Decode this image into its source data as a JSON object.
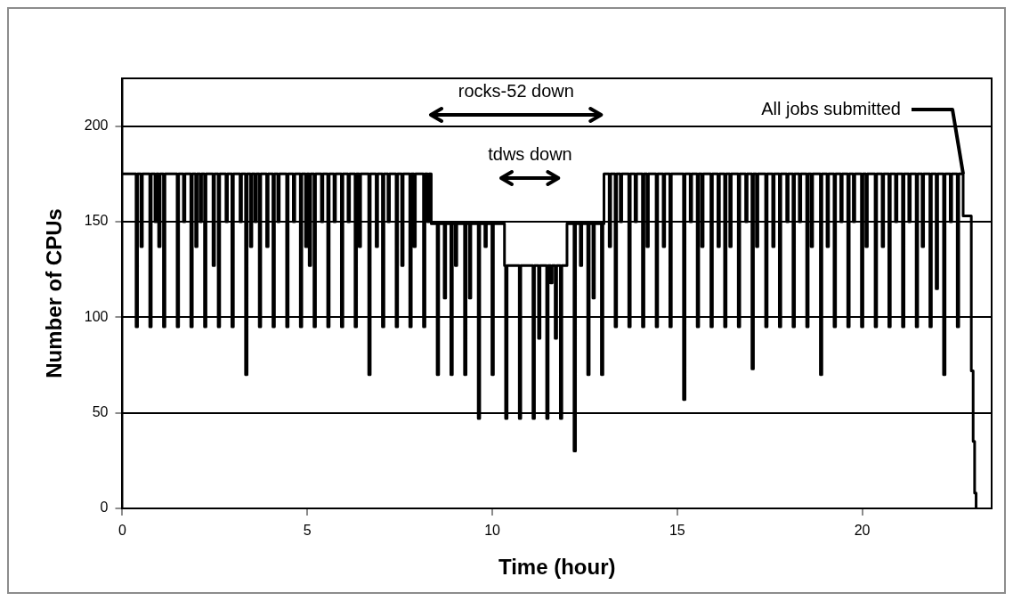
{
  "chart_data": {
    "type": "step",
    "xlabel": "Time (hour)",
    "ylabel": "Number of CPUs",
    "color": "#000000",
    "grid": "y",
    "xlim": [
      0,
      23.5
    ],
    "xticks": [
      0,
      5,
      10,
      15,
      20
    ],
    "ylim": [
      0,
      225
    ],
    "yticks": [
      0,
      50,
      100,
      150,
      200
    ],
    "x": [
      0,
      0.37,
      0.41,
      0.5,
      0.54,
      0.74,
      0.78,
      0.88,
      0.92,
      0.98,
      1.02,
      1.11,
      1.15,
      1.48,
      1.52,
      1.65,
      1.69,
      1.85,
      1.89,
      1.98,
      2.02,
      2.1,
      2.14,
      2.22,
      2.26,
      2.45,
      2.49,
      2.59,
      2.63,
      2.8,
      2.84,
      2.96,
      3.0,
      3.18,
      3.22,
      3.33,
      3.37,
      3.46,
      3.5,
      3.58,
      3.62,
      3.7,
      3.74,
      3.9,
      3.94,
      4.07,
      4.11,
      4.2,
      4.24,
      4.44,
      4.48,
      4.62,
      4.66,
      4.81,
      4.85,
      4.95,
      4.99,
      5.05,
      5.09,
      5.18,
      5.22,
      5.38,
      5.42,
      5.55,
      5.59,
      5.72,
      5.76,
      5.92,
      5.96,
      6.1,
      6.14,
      6.29,
      6.33,
      6.4,
      6.44,
      6.66,
      6.7,
      6.86,
      6.9,
      7.03,
      7.07,
      7.18,
      7.22,
      7.4,
      7.44,
      7.55,
      7.59,
      7.77,
      7.81,
      7.88,
      7.92,
      8.14,
      8.18,
      8.25,
      8.29,
      8.35,
      8.51,
      8.55,
      8.7,
      8.74,
      8.88,
      8.92,
      9.0,
      9.04,
      9.25,
      9.29,
      9.38,
      9.42,
      9.62,
      9.66,
      9.8,
      9.84,
      9.99,
      10.03,
      10.33,
      10.36,
      10.4,
      10.73,
      10.77,
      11.1,
      11.14,
      11.25,
      11.29,
      11.47,
      11.51,
      11.58,
      11.62,
      11.7,
      11.74,
      11.84,
      11.88,
      12.02,
      12.21,
      12.25,
      12.38,
      12.42,
      12.58,
      12.62,
      12.72,
      12.76,
      12.95,
      12.99,
      13.02,
      13.16,
      13.2,
      13.32,
      13.36,
      13.46,
      13.5,
      13.69,
      13.73,
      13.86,
      13.9,
      14.06,
      14.1,
      14.18,
      14.22,
      14.43,
      14.47,
      14.62,
      14.66,
      14.8,
      14.84,
      15.17,
      15.21,
      15.35,
      15.39,
      15.54,
      15.58,
      15.66,
      15.7,
      15.91,
      15.95,
      16.1,
      16.14,
      16.28,
      16.32,
      16.42,
      16.46,
      16.65,
      16.69,
      16.85,
      16.89,
      17.02,
      17.06,
      17.14,
      17.18,
      17.39,
      17.43,
      17.58,
      17.62,
      17.76,
      17.8,
      17.96,
      18.0,
      18.13,
      18.17,
      18.3,
      18.34,
      18.5,
      18.54,
      18.62,
      18.66,
      18.87,
      18.91,
      19.05,
      19.09,
      19.24,
      19.28,
      19.42,
      19.46,
      19.61,
      19.65,
      19.76,
      19.8,
      19.98,
      20.02,
      20.1,
      20.14,
      20.35,
      20.39,
      20.54,
      20.58,
      20.72,
      20.76,
      20.9,
      20.94,
      21.09,
      21.13,
      21.26,
      21.3,
      21.46,
      21.5,
      21.62,
      21.66,
      21.83,
      21.87,
      22.0,
      22.04,
      22.2,
      22.24,
      22.38,
      22.42,
      22.57,
      22.61,
      22.73,
      22.95,
      23.0,
      23.04,
      23.08
    ],
    "values": [
      175,
      95,
      175,
      137,
      175,
      95,
      175,
      150,
      175,
      137,
      175,
      95,
      175,
      95,
      175,
      150,
      175,
      95,
      175,
      137,
      175,
      150,
      175,
      95,
      175,
      127,
      175,
      95,
      175,
      150,
      175,
      95,
      175,
      150,
      175,
      70,
      175,
      137,
      175,
      150,
      175,
      95,
      175,
      137,
      175,
      95,
      175,
      150,
      175,
      95,
      175,
      150,
      175,
      95,
      175,
      137,
      175,
      127,
      175,
      95,
      175,
      150,
      175,
      95,
      175,
      150,
      175,
      95,
      175,
      150,
      175,
      95,
      175,
      137,
      175,
      70,
      175,
      137,
      175,
      95,
      175,
      150,
      175,
      95,
      175,
      127,
      175,
      95,
      175,
      137,
      175,
      95,
      175,
      150,
      175,
      149,
      70,
      149,
      110,
      149,
      70,
      149,
      127,
      149,
      70,
      149,
      110,
      149,
      47,
      149,
      137,
      149,
      70,
      149,
      127,
      47,
      127,
      47,
      127,
      47,
      127,
      89,
      127,
      47,
      127,
      118,
      127,
      89,
      127,
      47,
      127,
      149,
      30,
      149,
      127,
      149,
      70,
      149,
      110,
      149,
      70,
      149,
      175,
      137,
      175,
      95,
      175,
      150,
      175,
      95,
      175,
      150,
      175,
      95,
      175,
      137,
      175,
      95,
      175,
      137,
      175,
      95,
      175,
      57,
      175,
      150,
      175,
      95,
      175,
      137,
      175,
      95,
      175,
      137,
      175,
      95,
      175,
      137,
      175,
      95,
      175,
      150,
      175,
      73,
      175,
      137,
      175,
      95,
      175,
      137,
      175,
      95,
      175,
      150,
      175,
      95,
      175,
      150,
      175,
      95,
      175,
      137,
      175,
      70,
      175,
      137,
      175,
      95,
      175,
      150,
      175,
      95,
      175,
      150,
      175,
      95,
      175,
      137,
      175,
      95,
      175,
      137,
      175,
      95,
      175,
      150,
      175,
      95,
      175,
      150,
      175,
      95,
      175,
      137,
      175,
      95,
      175,
      115,
      175,
      70,
      175,
      150,
      175,
      95,
      175,
      153,
      72,
      35,
      8,
      0
    ],
    "annotations": [
      "rocks-52 down",
      "tdws down",
      {
        "text": "All jobs submitted",
        "x": 22.73,
        "y": 175
      }
    ]
  }
}
